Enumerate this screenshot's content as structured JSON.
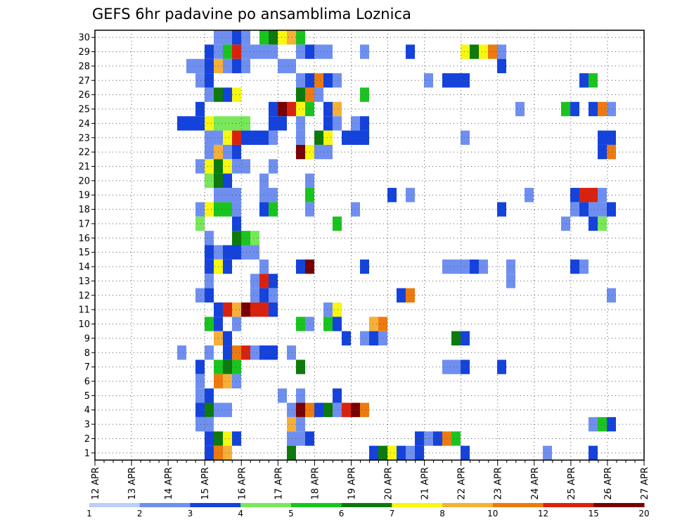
{
  "chart_data": {
    "type": "heatmap",
    "title": "GEFS 6hr padavine po ansamblima Loznica",
    "xlabel": "",
    "ylabel": "",
    "x_tick_labels": [
      "12 APR",
      "13 APR",
      "14 APR",
      "15 APR",
      "16 APR",
      "17 APR",
      "18 APR",
      "19 APR",
      "20 APR",
      "21 APR",
      "22 APR",
      "23 APR",
      "24 APR",
      "25 APR",
      "26 APR",
      "27 APR"
    ],
    "y_tick_labels": [
      "1",
      "2",
      "3",
      "4",
      "5",
      "6",
      "7",
      "8",
      "9",
      "10",
      "11",
      "12",
      "13",
      "14",
      "15",
      "16",
      "17",
      "18",
      "19",
      "20",
      "21",
      "22",
      "23",
      "24",
      "25",
      "26",
      "27",
      "28",
      "29",
      "30"
    ],
    "x_unit": "6-hour step from 12 APR 00Z",
    "xlim": [
      0,
      60
    ],
    "ylim": [
      0.5,
      30.5
    ],
    "grid": true,
    "legend": {
      "placement": "bottom",
      "boundaries": [
        "1",
        "2",
        "3",
        "4",
        "5",
        "6",
        "7",
        "8",
        "10",
        "12",
        "15",
        "20"
      ],
      "colors": [
        "#bccff7",
        "#6f8ff0",
        "#1442dc",
        "#78e85a",
        "#19c41e",
        "#0c7a0c",
        "#f7f711",
        "#f6b037",
        "#ee7a0e",
        "#d9220e",
        "#770003"
      ]
    },
    "cells_note": "each entry: [ensemble member (y), 6-hour step index (x), colour class 0-10]",
    "cells": [
      [
        30,
        49,
        1
      ],
      [
        30,
        50,
        1
      ],
      [
        30,
        51,
        2
      ],
      [
        30,
        52,
        1
      ],
      [
        30,
        54,
        4
      ],
      [
        30,
        55,
        5
      ],
      [
        30,
        56,
        6
      ],
      [
        30,
        57,
        7
      ],
      [
        30,
        58,
        4
      ],
      [
        29,
        48,
        2
      ],
      [
        29,
        49,
        1
      ],
      [
        29,
        50,
        4
      ],
      [
        29,
        51,
        9
      ],
      [
        29,
        52,
        1
      ],
      [
        29,
        53,
        1
      ],
      [
        29,
        54,
        1
      ],
      [
        29,
        55,
        1
      ],
      [
        29,
        58,
        1
      ],
      [
        29,
        59,
        2
      ],
      [
        29,
        60,
        1
      ],
      [
        29,
        61,
        1
      ],
      [
        29,
        65,
        1
      ],
      [
        29,
        70,
        2
      ],
      [
        29,
        76,
        6
      ],
      [
        29,
        77,
        5
      ],
      [
        29,
        78,
        6
      ],
      [
        29,
        79,
        8
      ],
      [
        29,
        80,
        1
      ],
      [
        28,
        46,
        1
      ],
      [
        28,
        47,
        1
      ],
      [
        28,
        48,
        2
      ],
      [
        28,
        49,
        7
      ],
      [
        28,
        50,
        1
      ],
      [
        28,
        51,
        2
      ],
      [
        28,
        52,
        1
      ],
      [
        28,
        56,
        1
      ],
      [
        28,
        57,
        1
      ],
      [
        28,
        80,
        2
      ],
      [
        27,
        47,
        1
      ],
      [
        27,
        48,
        2
      ],
      [
        27,
        58,
        1
      ],
      [
        27,
        59,
        2
      ],
      [
        27,
        60,
        8
      ],
      [
        27,
        61,
        2
      ],
      [
        27,
        62,
        1
      ],
      [
        27,
        72,
        1
      ],
      [
        27,
        74,
        2
      ],
      [
        27,
        75,
        2
      ],
      [
        27,
        76,
        2
      ],
      [
        27,
        89,
        2
      ],
      [
        27,
        90,
        4
      ],
      [
        26,
        48,
        1
      ],
      [
        26,
        49,
        5
      ],
      [
        26,
        50,
        2
      ],
      [
        26,
        51,
        6
      ],
      [
        26,
        58,
        5
      ],
      [
        26,
        59,
        8
      ],
      [
        26,
        60,
        1
      ],
      [
        26,
        65,
        4
      ],
      [
        25,
        47,
        2
      ],
      [
        25,
        55,
        2
      ],
      [
        25,
        56,
        10
      ],
      [
        25,
        57,
        9
      ],
      [
        25,
        58,
        6
      ],
      [
        25,
        59,
        4
      ],
      [
        25,
        61,
        2
      ],
      [
        25,
        62,
        7
      ],
      [
        25,
        82,
        1
      ],
      [
        25,
        87,
        4
      ],
      [
        25,
        88,
        2
      ],
      [
        25,
        90,
        2
      ],
      [
        25,
        91,
        8
      ],
      [
        25,
        92,
        1
      ],
      [
        24,
        45,
        2
      ],
      [
        24,
        46,
        2
      ],
      [
        24,
        47,
        2
      ],
      [
        24,
        48,
        6
      ],
      [
        24,
        49,
        3
      ],
      [
        24,
        50,
        3
      ],
      [
        24,
        51,
        3
      ],
      [
        24,
        52,
        3
      ],
      [
        24,
        55,
        2
      ],
      [
        24,
        56,
        2
      ],
      [
        24,
        58,
        1
      ],
      [
        24,
        61,
        2
      ],
      [
        24,
        62,
        1
      ],
      [
        24,
        64,
        1
      ],
      [
        24,
        65,
        2
      ],
      [
        23,
        48,
        1
      ],
      [
        23,
        49,
        1
      ],
      [
        23,
        50,
        6
      ],
      [
        23,
        51,
        9
      ],
      [
        23,
        52,
        2
      ],
      [
        23,
        53,
        2
      ],
      [
        23,
        54,
        2
      ],
      [
        23,
        55,
        1
      ],
      [
        23,
        58,
        1
      ],
      [
        23,
        60,
        5
      ],
      [
        23,
        61,
        6
      ],
      [
        23,
        63,
        2
      ],
      [
        23,
        64,
        2
      ],
      [
        23,
        65,
        2
      ],
      [
        23,
        76,
        1
      ],
      [
        23,
        91,
        2
      ],
      [
        23,
        92,
        2
      ],
      [
        22,
        48,
        1
      ],
      [
        22,
        49,
        7
      ],
      [
        22,
        50,
        1
      ],
      [
        22,
        51,
        2
      ],
      [
        22,
        58,
        10
      ],
      [
        22,
        59,
        6
      ],
      [
        22,
        60,
        1
      ],
      [
        22,
        61,
        1
      ],
      [
        22,
        91,
        2
      ],
      [
        22,
        92,
        8
      ],
      [
        21,
        47,
        1
      ],
      [
        21,
        48,
        6
      ],
      [
        21,
        49,
        5
      ],
      [
        21,
        50,
        6
      ],
      [
        21,
        51,
        1
      ],
      [
        21,
        52,
        1
      ],
      [
        21,
        55,
        1
      ],
      [
        20,
        48,
        3
      ],
      [
        20,
        49,
        5
      ],
      [
        20,
        50,
        2
      ],
      [
        20,
        54,
        1
      ],
      [
        20,
        59,
        1
      ],
      [
        19,
        49,
        1
      ],
      [
        19,
        50,
        1
      ],
      [
        19,
        51,
        1
      ],
      [
        19,
        54,
        1
      ],
      [
        19,
        55,
        1
      ],
      [
        19,
        59,
        4
      ],
      [
        19,
        68,
        2
      ],
      [
        19,
        70,
        1
      ],
      [
        19,
        83,
        1
      ],
      [
        19,
        88,
        2
      ],
      [
        19,
        89,
        9
      ],
      [
        19,
        90,
        9
      ],
      [
        19,
        91,
        1
      ],
      [
        18,
        47,
        1
      ],
      [
        18,
        48,
        6
      ],
      [
        18,
        49,
        4
      ],
      [
        18,
        50,
        4
      ],
      [
        18,
        51,
        1
      ],
      [
        18,
        54,
        2
      ],
      [
        18,
        55,
        4
      ],
      [
        18,
        59,
        1
      ],
      [
        18,
        64,
        1
      ],
      [
        18,
        80,
        2
      ],
      [
        18,
        88,
        1
      ],
      [
        18,
        89,
        2
      ],
      [
        18,
        90,
        1
      ],
      [
        18,
        91,
        1
      ],
      [
        18,
        92,
        2
      ],
      [
        17,
        47,
        3
      ],
      [
        17,
        51,
        2
      ],
      [
        17,
        62,
        4
      ],
      [
        17,
        87,
        1
      ],
      [
        17,
        90,
        2
      ],
      [
        17,
        91,
        3
      ],
      [
        16,
        48,
        1
      ],
      [
        16,
        51,
        5
      ],
      [
        16,
        52,
        4
      ],
      [
        16,
        53,
        3
      ],
      [
        15,
        48,
        2
      ],
      [
        15,
        49,
        1
      ],
      [
        15,
        50,
        2
      ],
      [
        15,
        51,
        2
      ],
      [
        15,
        52,
        1
      ],
      [
        15,
        53,
        1
      ],
      [
        14,
        48,
        2
      ],
      [
        14,
        49,
        6
      ],
      [
        14,
        50,
        2
      ],
      [
        14,
        54,
        1
      ],
      [
        14,
        58,
        2
      ],
      [
        14,
        59,
        10
      ],
      [
        14,
        65,
        2
      ],
      [
        14,
        74,
        1
      ],
      [
        14,
        75,
        1
      ],
      [
        14,
        76,
        1
      ],
      [
        14,
        77,
        2
      ],
      [
        14,
        78,
        1
      ],
      [
        14,
        81,
        1
      ],
      [
        14,
        88,
        2
      ],
      [
        14,
        89,
        1
      ],
      [
        13,
        48,
        1
      ],
      [
        13,
        53,
        1
      ],
      [
        13,
        54,
        9
      ],
      [
        13,
        55,
        2
      ],
      [
        13,
        81,
        1
      ],
      [
        12,
        47,
        1
      ],
      [
        12,
        48,
        2
      ],
      [
        12,
        53,
        1
      ],
      [
        12,
        54,
        2
      ],
      [
        12,
        55,
        1
      ],
      [
        12,
        69,
        2
      ],
      [
        12,
        70,
        8
      ],
      [
        12,
        92,
        1
      ],
      [
        11,
        49,
        2
      ],
      [
        11,
        50,
        9
      ],
      [
        11,
        51,
        7
      ],
      [
        11,
        52,
        10
      ],
      [
        11,
        53,
        9
      ],
      [
        11,
        54,
        9
      ],
      [
        11,
        55,
        2
      ],
      [
        11,
        61,
        1
      ],
      [
        11,
        62,
        6
      ],
      [
        10,
        48,
        4
      ],
      [
        10,
        49,
        2
      ],
      [
        10,
        51,
        1
      ],
      [
        10,
        58,
        4
      ],
      [
        10,
        59,
        1
      ],
      [
        10,
        61,
        4
      ],
      [
        10,
        62,
        2
      ],
      [
        10,
        66,
        7
      ],
      [
        10,
        67,
        8
      ],
      [
        9,
        49,
        7
      ],
      [
        9,
        50,
        2
      ],
      [
        9,
        63,
        2
      ],
      [
        9,
        65,
        1
      ],
      [
        9,
        66,
        2
      ],
      [
        9,
        67,
        1
      ],
      [
        9,
        75,
        5
      ],
      [
        9,
        76,
        2
      ],
      [
        8,
        45,
        1
      ],
      [
        8,
        48,
        1
      ],
      [
        8,
        50,
        2
      ],
      [
        8,
        51,
        8
      ],
      [
        8,
        52,
        9
      ],
      [
        8,
        53,
        1
      ],
      [
        8,
        54,
        2
      ],
      [
        8,
        55,
        2
      ],
      [
        8,
        57,
        1
      ],
      [
        7,
        47,
        2
      ],
      [
        7,
        49,
        4
      ],
      [
        7,
        50,
        5
      ],
      [
        7,
        51,
        4
      ],
      [
        7,
        58,
        5
      ],
      [
        7,
        74,
        1
      ],
      [
        7,
        75,
        1
      ],
      [
        7,
        76,
        2
      ],
      [
        7,
        80,
        2
      ],
      [
        6,
        47,
        1
      ],
      [
        6,
        49,
        8
      ],
      [
        6,
        50,
        7
      ],
      [
        6,
        51,
        1
      ],
      [
        5,
        47,
        1
      ],
      [
        5,
        48,
        2
      ],
      [
        5,
        56,
        1
      ],
      [
        5,
        58,
        1
      ],
      [
        5,
        62,
        2
      ],
      [
        4,
        47,
        2
      ],
      [
        4,
        48,
        5
      ],
      [
        4,
        49,
        1
      ],
      [
        4,
        50,
        1
      ],
      [
        4,
        57,
        1
      ],
      [
        4,
        58,
        10
      ],
      [
        4,
        59,
        8
      ],
      [
        4,
        60,
        2
      ],
      [
        4,
        61,
        5
      ],
      [
        4,
        62,
        1
      ],
      [
        4,
        63,
        9
      ],
      [
        4,
        64,
        10
      ],
      [
        4,
        65,
        8
      ],
      [
        3,
        47,
        1
      ],
      [
        3,
        48,
        1
      ],
      [
        3,
        57,
        7
      ],
      [
        3,
        58,
        1
      ],
      [
        3,
        90,
        1
      ],
      [
        3,
        91,
        4
      ],
      [
        3,
        92,
        2
      ],
      [
        2,
        48,
        2
      ],
      [
        2,
        49,
        5
      ],
      [
        2,
        50,
        6
      ],
      [
        2,
        51,
        2
      ],
      [
        2,
        57,
        1
      ],
      [
        2,
        58,
        1
      ],
      [
        2,
        59,
        2
      ],
      [
        2,
        71,
        2
      ],
      [
        2,
        72,
        1
      ],
      [
        2,
        73,
        2
      ],
      [
        2,
        74,
        8
      ],
      [
        2,
        75,
        4
      ],
      [
        1,
        48,
        2
      ],
      [
        1,
        49,
        8
      ],
      [
        1,
        50,
        7
      ],
      [
        1,
        57,
        5
      ],
      [
        1,
        66,
        2
      ],
      [
        1,
        67,
        5
      ],
      [
        1,
        68,
        6
      ],
      [
        1,
        69,
        2
      ],
      [
        1,
        70,
        1
      ],
      [
        1,
        71,
        2
      ],
      [
        1,
        76,
        2
      ],
      [
        1,
        85,
        1
      ],
      [
        1,
        90,
        2
      ],
      [
        0,
        47,
        2
      ],
      [
        0,
        48,
        1
      ],
      [
        0,
        59,
        5
      ],
      [
        0,
        75,
        1
      ],
      [
        0,
        76,
        1
      ]
    ]
  }
}
